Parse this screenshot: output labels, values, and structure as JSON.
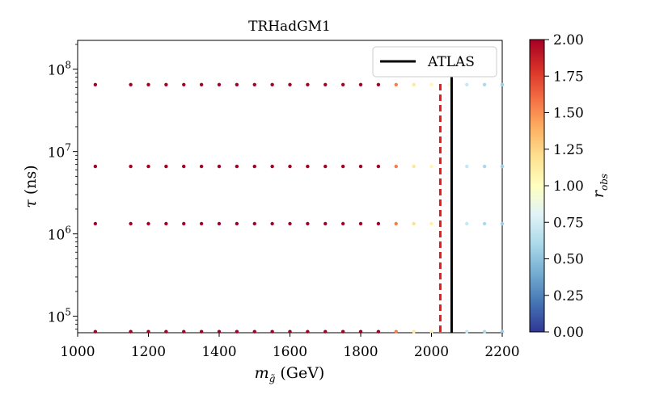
{
  "chart_data": {
    "type": "scatter",
    "title": "TRHadGM1",
    "xlabel": "m",
    "xlabel_sub": "g̃",
    "xlabel_unit": "(GeV)",
    "ylabel": "τ",
    "ylabel_unit": "(ns)",
    "xlim": [
      1000,
      2200
    ],
    "ylim_log10": [
      4.8,
      8.35
    ],
    "y_scale": "log",
    "x_ticks": [
      "1000",
      "1200",
      "1400",
      "1600",
      "1800",
      "2000",
      "2200"
    ],
    "y_ticks": [
      {
        "base": "10",
        "exp": "5",
        "log10": 5
      },
      {
        "base": "10",
        "exp": "6",
        "log10": 6
      },
      {
        "base": "10",
        "exp": "7",
        "log10": 7
      },
      {
        "base": "10",
        "exp": "8",
        "log10": 8
      }
    ],
    "grid": false,
    "masses": [
      1050,
      1150,
      1200,
      1250,
      1300,
      1350,
      1400,
      1450,
      1500,
      1550,
      1600,
      1650,
      1700,
      1750,
      1800,
      1850,
      1900,
      1950,
      2000,
      2050,
      2100,
      2150,
      2200
    ],
    "tau_rows": [
      {
        "tau": 65000000,
        "r_obs": [
          2.0,
          2.0,
          2.0,
          2.0,
          2.0,
          2.0,
          2.0,
          2.0,
          2.0,
          2.0,
          2.0,
          2.0,
          2.0,
          2.0,
          2.0,
          2.0,
          1.55,
          1.15,
          1.05,
          0.95,
          0.7,
          0.6,
          0.55
        ]
      },
      {
        "tau": 6600000,
        "r_obs": [
          2.0,
          2.0,
          2.0,
          2.0,
          2.0,
          2.0,
          2.0,
          2.0,
          2.0,
          2.0,
          2.0,
          2.0,
          2.0,
          2.0,
          2.0,
          2.0,
          1.55,
          1.15,
          1.05,
          null,
          0.7,
          0.6,
          0.55
        ]
      },
      {
        "tau": 1330000,
        "r_obs": [
          2.0,
          2.0,
          2.0,
          2.0,
          2.0,
          2.0,
          2.0,
          2.0,
          2.0,
          2.0,
          2.0,
          2.0,
          2.0,
          2.0,
          2.0,
          2.0,
          1.55,
          1.2,
          1.1,
          null,
          0.7,
          0.6,
          0.55
        ]
      },
      {
        "tau": 65000,
        "r_obs": [
          2.0,
          2.0,
          2.0,
          2.0,
          2.0,
          2.0,
          2.0,
          2.0,
          2.0,
          2.0,
          2.0,
          2.0,
          2.0,
          2.0,
          2.0,
          2.0,
          1.55,
          1.15,
          1.05,
          null,
          0.7,
          0.6,
          0.55
        ]
      }
    ],
    "lines": [
      {
        "x": 2057,
        "style": "solid",
        "color": "#000000",
        "name": "ATLAS"
      },
      {
        "x": 2025,
        "style": "dashed",
        "color": "#e41a1c",
        "name": ""
      }
    ],
    "legend": {
      "entries": [
        "ATLAS"
      ],
      "placement": "top-right"
    },
    "colorbar": {
      "label": "r",
      "label_sub": "obs",
      "range": [
        0,
        2
      ],
      "ticks": [
        "0.00",
        "0.25",
        "0.50",
        "0.75",
        "1.00",
        "1.25",
        "1.50",
        "1.75",
        "2.00"
      ],
      "colormap": [
        "#313695",
        "#4575b4",
        "#74add1",
        "#abd9e9",
        "#e0f3f8",
        "#ffffbf",
        "#fee090",
        "#fdae61",
        "#f46d43",
        "#d73027",
        "#a50026"
      ]
    }
  }
}
